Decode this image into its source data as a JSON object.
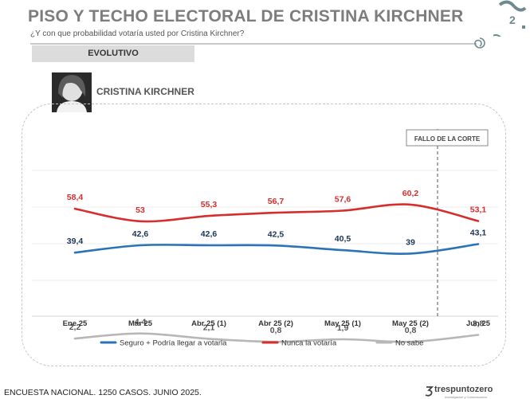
{
  "header": {
    "title": "PISO Y TECHO ELECTORAL DE CRISTINA KIRCHNER",
    "subtitle": "¿Y con que probabilidad votaría usted por Cristina Kirchner?",
    "tag": "EVOLUTIVO"
  },
  "person": {
    "name": "CRISTINA KIRCHNER"
  },
  "annotation": "FALLO DE LA CORTE",
  "footer": {
    "note": "ENCUESTA NACIONAL. 1250 CASOS. JUNIO 2025.",
    "brand": "trespuntozero",
    "brand_sub": "Investigación y Comunicación"
  },
  "icons": [
    "logo-icon",
    "photo-icon"
  ],
  "chart_data": {
    "type": "line",
    "categories": [
      "Ene 25",
      "Mar 25",
      "Abr 25 (1)",
      "Abr 25 (2)",
      "May 25 (1)",
      "May 25 (2)",
      "Jun 25"
    ],
    "series": [
      {
        "name": "Seguro + Podría llegar a votarla",
        "values": [
          39.4,
          42.6,
          42.6,
          42.5,
          40.5,
          39,
          43.1
        ],
        "labels": [
          "39,4",
          "42,6",
          "42,6",
          "42,5",
          "40,5",
          "39",
          "43,1"
        ],
        "color": "#2a73b8",
        "label_color": "#1a3557"
      },
      {
        "name": "Nunca la votaría",
        "values": [
          58.4,
          53,
          55.3,
          56.7,
          57.6,
          60.2,
          53.1
        ],
        "labels": [
          "58,4",
          "53",
          "55,3",
          "56,7",
          "57,6",
          "60,2",
          "53,1"
        ],
        "color": "#d62d2d",
        "label_color": "#d62d2d"
      },
      {
        "name": "No sabe",
        "values": [
          2.2,
          4.4,
          2.1,
          0.8,
          1.9,
          0.8,
          3.8
        ],
        "labels": [
          "2,2",
          "4,4",
          "2,1",
          "0,8",
          "1,9",
          "0,8",
          "3,8"
        ],
        "color": "#b7b7b7",
        "label_color": "#555555"
      }
    ],
    "legend_position": "bottom",
    "grid": true
  }
}
